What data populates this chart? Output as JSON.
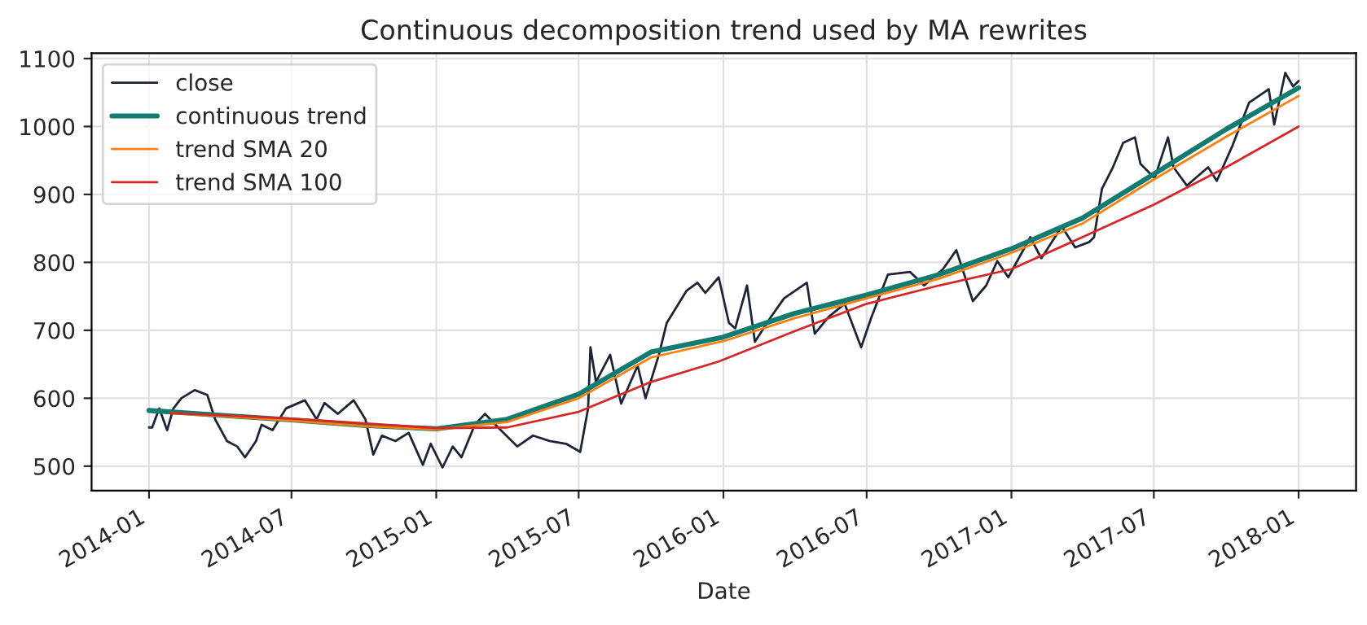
{
  "chart_data": {
    "type": "line",
    "title": "Continuous decomposition trend used by MA rewrites",
    "xlabel": "Date",
    "xlim": [
      "2013-10-20",
      "2018-03-15"
    ],
    "ylim": [
      464,
      1108
    ],
    "xticks": [
      {
        "value": "2014-01",
        "label": "2014-01"
      },
      {
        "value": "2014-07",
        "label": "2014-07"
      },
      {
        "value": "2015-01",
        "label": "2015-01"
      },
      {
        "value": "2015-07",
        "label": "2015-07"
      },
      {
        "value": "2016-01",
        "label": "2016-01"
      },
      {
        "value": "2016-07",
        "label": "2016-07"
      },
      {
        "value": "2017-01",
        "label": "2017-01"
      },
      {
        "value": "2017-07",
        "label": "2017-07"
      },
      {
        "value": "2018-01",
        "label": "2018-01"
      }
    ],
    "yticks": [
      500,
      600,
      700,
      800,
      900,
      1000,
      1100
    ],
    "grid": true,
    "legend": "top left",
    "series": [
      {
        "name": "close",
        "color": "#1c2536",
        "x": [
          "2014-01-01",
          "2014-01-05",
          "2014-01-14",
          "2014-01-24",
          "2014-02-01",
          "2014-02-11",
          "2014-02-28",
          "2014-03-16",
          "2014-03-26",
          "2014-04-10",
          "2014-04-23",
          "2014-05-03",
          "2014-05-17",
          "2014-05-24",
          "2014-06-07",
          "2014-06-24",
          "2014-07-18",
          "2014-08-02",
          "2014-08-12",
          "2014-08-29",
          "2014-09-18",
          "2014-10-03",
          "2014-10-13",
          "2014-10-24",
          "2014-11-10",
          "2014-11-27",
          "2014-12-15",
          "2014-12-25",
          "2015-01-09",
          "2015-01-22",
          "2015-02-02",
          "2015-02-19",
          "2015-03-04",
          "2015-03-24",
          "2015-04-14",
          "2015-05-04",
          "2015-05-25",
          "2015-06-15",
          "2015-07-03",
          "2015-07-13",
          "2015-07-16",
          "2015-07-23",
          "2015-08-10",
          "2015-08-24",
          "2015-09-14",
          "2015-09-24",
          "2015-10-11",
          "2015-10-21",
          "2015-11-15",
          "2015-11-29",
          "2015-12-09",
          "2015-12-26",
          "2016-01-08",
          "2016-01-16",
          "2016-01-31",
          "2016-02-10",
          "2016-03-01",
          "2016-03-18",
          "2016-04-16",
          "2016-04-26",
          "2016-05-13",
          "2016-06-03",
          "2016-06-24",
          "2016-07-07",
          "2016-07-28",
          "2016-08-25",
          "2016-09-12",
          "2016-10-06",
          "2016-10-23",
          "2016-11-13",
          "2016-11-30",
          "2016-12-14",
          "2016-12-28",
          "2017-01-25",
          "2017-02-08",
          "2017-03-06",
          "2017-03-23",
          "2017-04-10",
          "2017-04-16",
          "2017-04-26",
          "2017-05-10",
          "2017-05-23",
          "2017-06-07",
          "2017-06-14",
          "2017-07-02",
          "2017-07-19",
          "2017-07-26",
          "2017-08-12",
          "2017-09-08",
          "2017-09-19",
          "2017-10-09",
          "2017-10-30",
          "2017-11-24",
          "2017-12-01",
          "2017-12-15",
          "2017-12-25",
          "2018-01-01"
        ],
        "values": [
          557,
          557,
          585,
          553,
          585,
          600,
          612,
          605,
          569,
          537,
          529,
          513,
          537,
          561,
          553,
          585,
          597,
          569,
          593,
          577,
          597,
          569,
          517,
          545,
          537,
          549,
          502,
          533,
          498,
          529,
          513,
          561,
          577,
          553,
          529,
          545,
          537,
          533,
          521,
          585,
          675,
          624,
          664,
          592,
          648,
          600,
          664,
          711,
          758,
          770,
          755,
          778,
          711,
          703,
          766,
          683,
          719,
          747,
          770,
          695,
          719,
          739,
          675,
          719,
          782,
          786,
          766,
          790,
          818,
          743,
          766,
          802,
          778,
          837,
          806,
          853,
          822,
          830,
          837,
          908,
          940,
          976,
          984,
          945,
          924,
          984,
          940,
          913,
          940,
          920,
          972,
          1035,
          1055,
          1003,
          1079,
          1059,
          1067
        ]
      },
      {
        "name": "continuous trend",
        "color": "#137b6f",
        "x": [
          "2014-01-01",
          "2014-04-01",
          "2014-07-01",
          "2014-10-01",
          "2015-01-01",
          "2015-04-01",
          "2015-07-01",
          "2015-10-01",
          "2016-01-01",
          "2016-04-01",
          "2016-07-01",
          "2016-10-01",
          "2017-01-01",
          "2017-04-01",
          "2017-07-01",
          "2017-10-01",
          "2018-01-01"
        ],
        "values": [
          582,
          575,
          568,
          560,
          555,
          569,
          606,
          668,
          690,
          725,
          752,
          782,
          820,
          865,
          930,
          996,
          1057
        ]
      },
      {
        "name": "trend SMA 20",
        "color": "#ff7f0e",
        "x": [
          "2014-01-28",
          "2014-04-01",
          "2014-07-01",
          "2014-10-01",
          "2015-01-01",
          "2015-04-01",
          "2015-07-01",
          "2015-10-01",
          "2016-01-01",
          "2016-04-01",
          "2016-07-01",
          "2016-10-01",
          "2017-01-01",
          "2017-04-01",
          "2017-07-01",
          "2017-10-01",
          "2018-01-01"
        ],
        "values": [
          578,
          574,
          567,
          559,
          554,
          565,
          600,
          660,
          684,
          718,
          747,
          776,
          814,
          857,
          922,
          985,
          1045
        ]
      },
      {
        "name": "trend SMA 100",
        "color": "#d62728",
        "x": [
          "2014-01-28",
          "2014-04-01",
          "2014-07-01",
          "2014-10-01",
          "2015-01-01",
          "2015-04-01",
          "2015-07-01",
          "2015-10-01",
          "2015-12-26",
          "2016-04-01",
          "2016-07-01",
          "2016-10-01",
          "2017-01-01",
          "2017-04-01",
          "2017-07-01",
          "2017-10-01",
          "2018-01-01"
        ],
        "values": [
          578,
          575,
          570,
          563,
          556,
          557,
          580,
          624,
          654,
          699,
          739,
          766,
          790,
          837,
          885,
          940,
          1000
        ]
      }
    ]
  }
}
